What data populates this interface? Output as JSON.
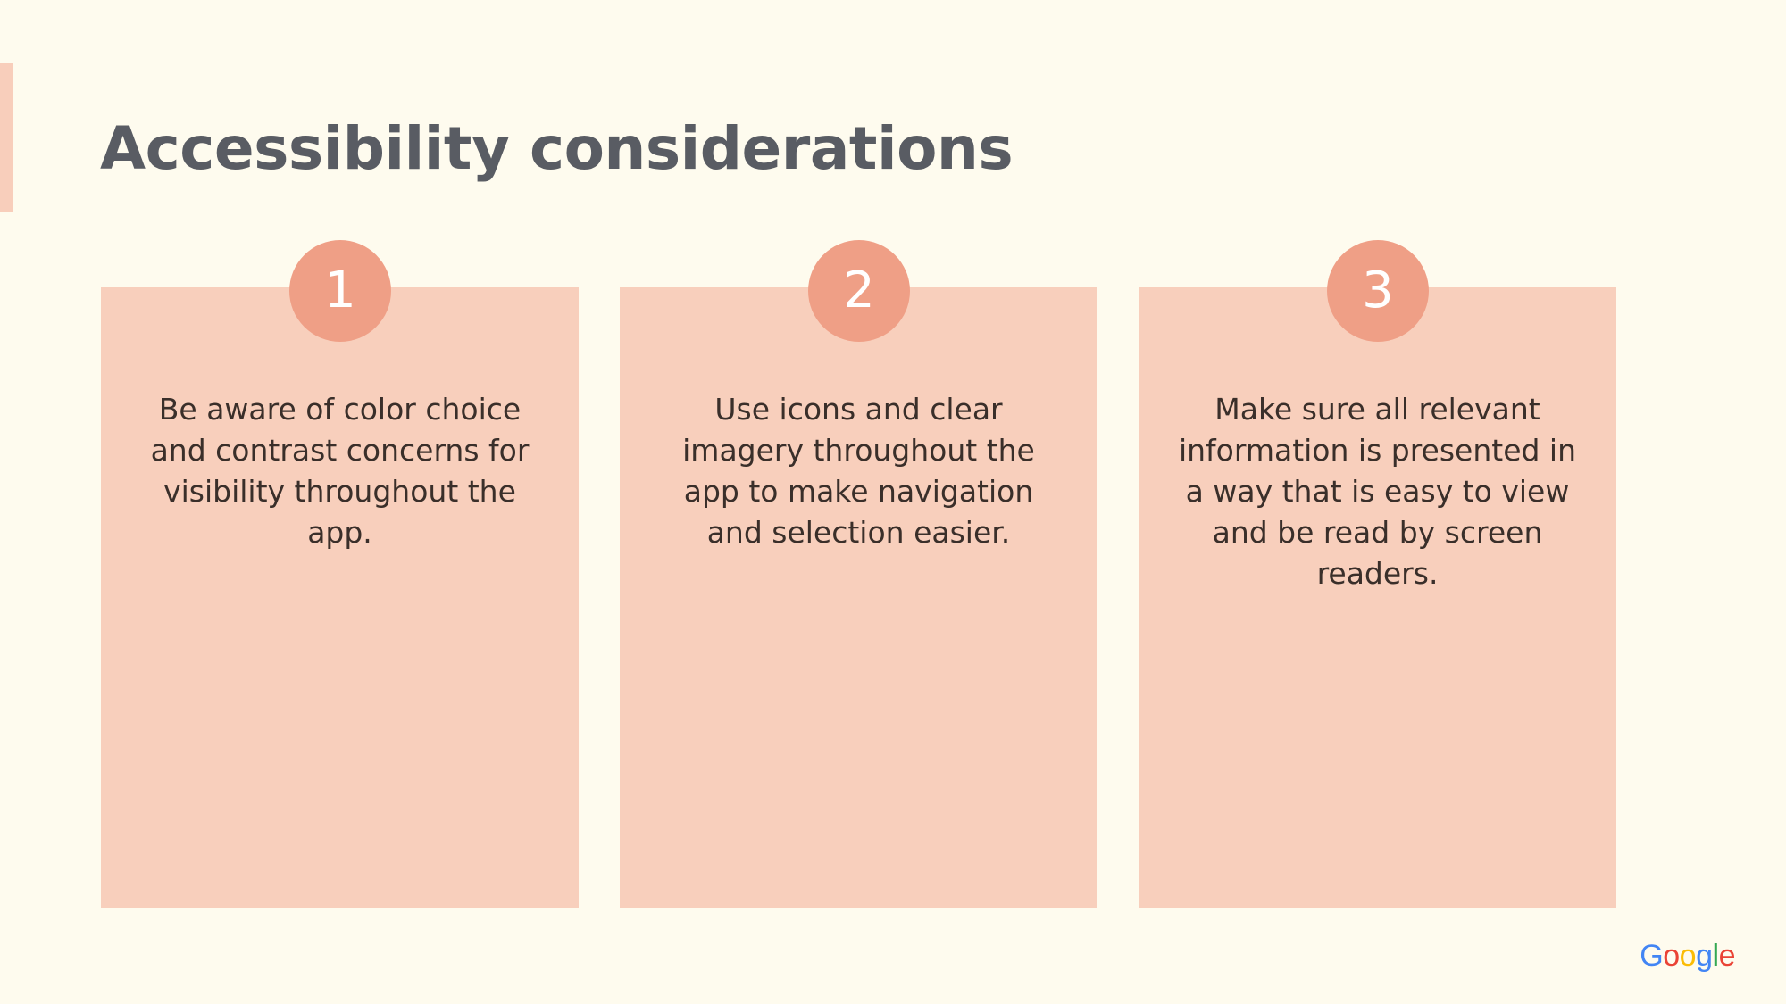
{
  "slide": {
    "title": "Accessibility considerations",
    "cards": [
      {
        "number": "1",
        "text": "Be aware of color choice and contrast concerns for visibility throughout the app."
      },
      {
        "number": "2",
        "text": "Use icons and clear imagery throughout the app to make navigation and selection easier."
      },
      {
        "number": "3",
        "text": "Make sure all relevant information is presented in a way that is easy to view and be read by screen readers."
      }
    ]
  },
  "logo": {
    "letters": [
      "G",
      "o",
      "o",
      "g",
      "l",
      "e"
    ]
  },
  "colors": {
    "background": "#fefbee",
    "card": "#f8cfbc",
    "badge": "#ef9f86",
    "title": "#595c63",
    "body_text": "#3a2f2a"
  }
}
